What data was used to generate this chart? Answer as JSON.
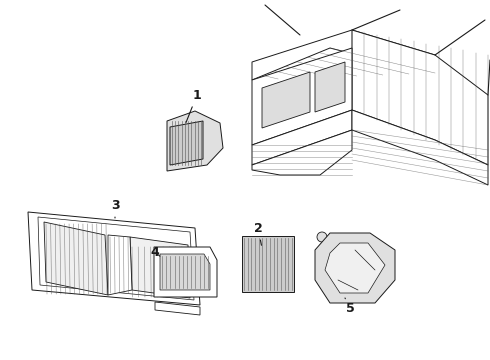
{
  "background_color": "#ffffff",
  "line_color": "#1a1a1a",
  "figsize": [
    4.9,
    3.6
  ],
  "dpi": 100,
  "label_fontsize": 9,
  "hatch_color": "#555555"
}
